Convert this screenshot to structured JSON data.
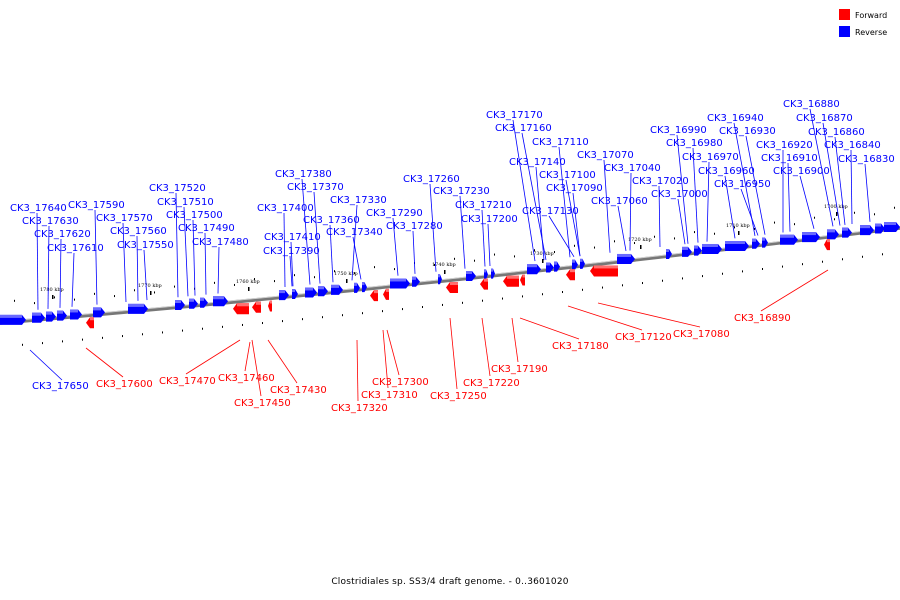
{
  "legend": [
    {
      "label": "Forward",
      "color": "#ff0000"
    },
    {
      "label": "Reverse",
      "color": "#0000ff"
    }
  ],
  "caption": "Clostridiales sp. SS3/4 draft genome. - 0..3601020",
  "scale_ticks": [
    "1780 kbp",
    "1770 kbp",
    "1760 kbp",
    "1750 kbp",
    "1740 kbp",
    "1730 kbp",
    "1720 kbp",
    "1710 kbp",
    "1700 kbp"
  ],
  "genes_reverse": [
    "CK3_17640",
    "CK3_17630",
    "CK3_17620",
    "CK3_17610",
    "CK3_17590",
    "CK3_17570",
    "CK3_17560",
    "CK3_17550",
    "CK3_17520",
    "CK3_17510",
    "CK3_17500",
    "CK3_17490",
    "CK3_17480",
    "CK3_17400",
    "CK3_17410",
    "CK3_17390",
    "CK3_17380",
    "CK3_17370",
    "CK3_17360",
    "CK3_17340",
    "CK3_17330",
    "CK3_17290",
    "CK3_17280",
    "CK3_17260",
    "CK3_17230",
    "CK3_17210",
    "CK3_17200",
    "CK3_17170",
    "CK3_17160",
    "CK3_17140",
    "CK3_17130",
    "CK3_17110",
    "CK3_17100",
    "CK3_17090",
    "CK3_17070",
    "CK3_17060",
    "CK3_17040",
    "CK3_17020",
    "CK3_17000",
    "CK3_16990",
    "CK3_16980",
    "CK3_16970",
    "CK3_16960",
    "CK3_16950",
    "CK3_16940",
    "CK3_16930",
    "CK3_16920",
    "CK3_16910",
    "CK3_16900",
    "CK3_16880",
    "CK3_16870",
    "CK3_16860",
    "CK3_16840",
    "CK3_16830",
    "CK3_17650"
  ],
  "genes_forward": [
    "CK3_17600",
    "CK3_17470",
    "CK3_17460",
    "CK3_17450",
    "CK3_17430",
    "CK3_17320",
    "CK3_17310",
    "CK3_17300",
    "CK3_17250",
    "CK3_17220",
    "CK3_17190",
    "CK3_17180",
    "CK3_17120",
    "CK3_17080",
    "CK3_16890"
  ]
}
